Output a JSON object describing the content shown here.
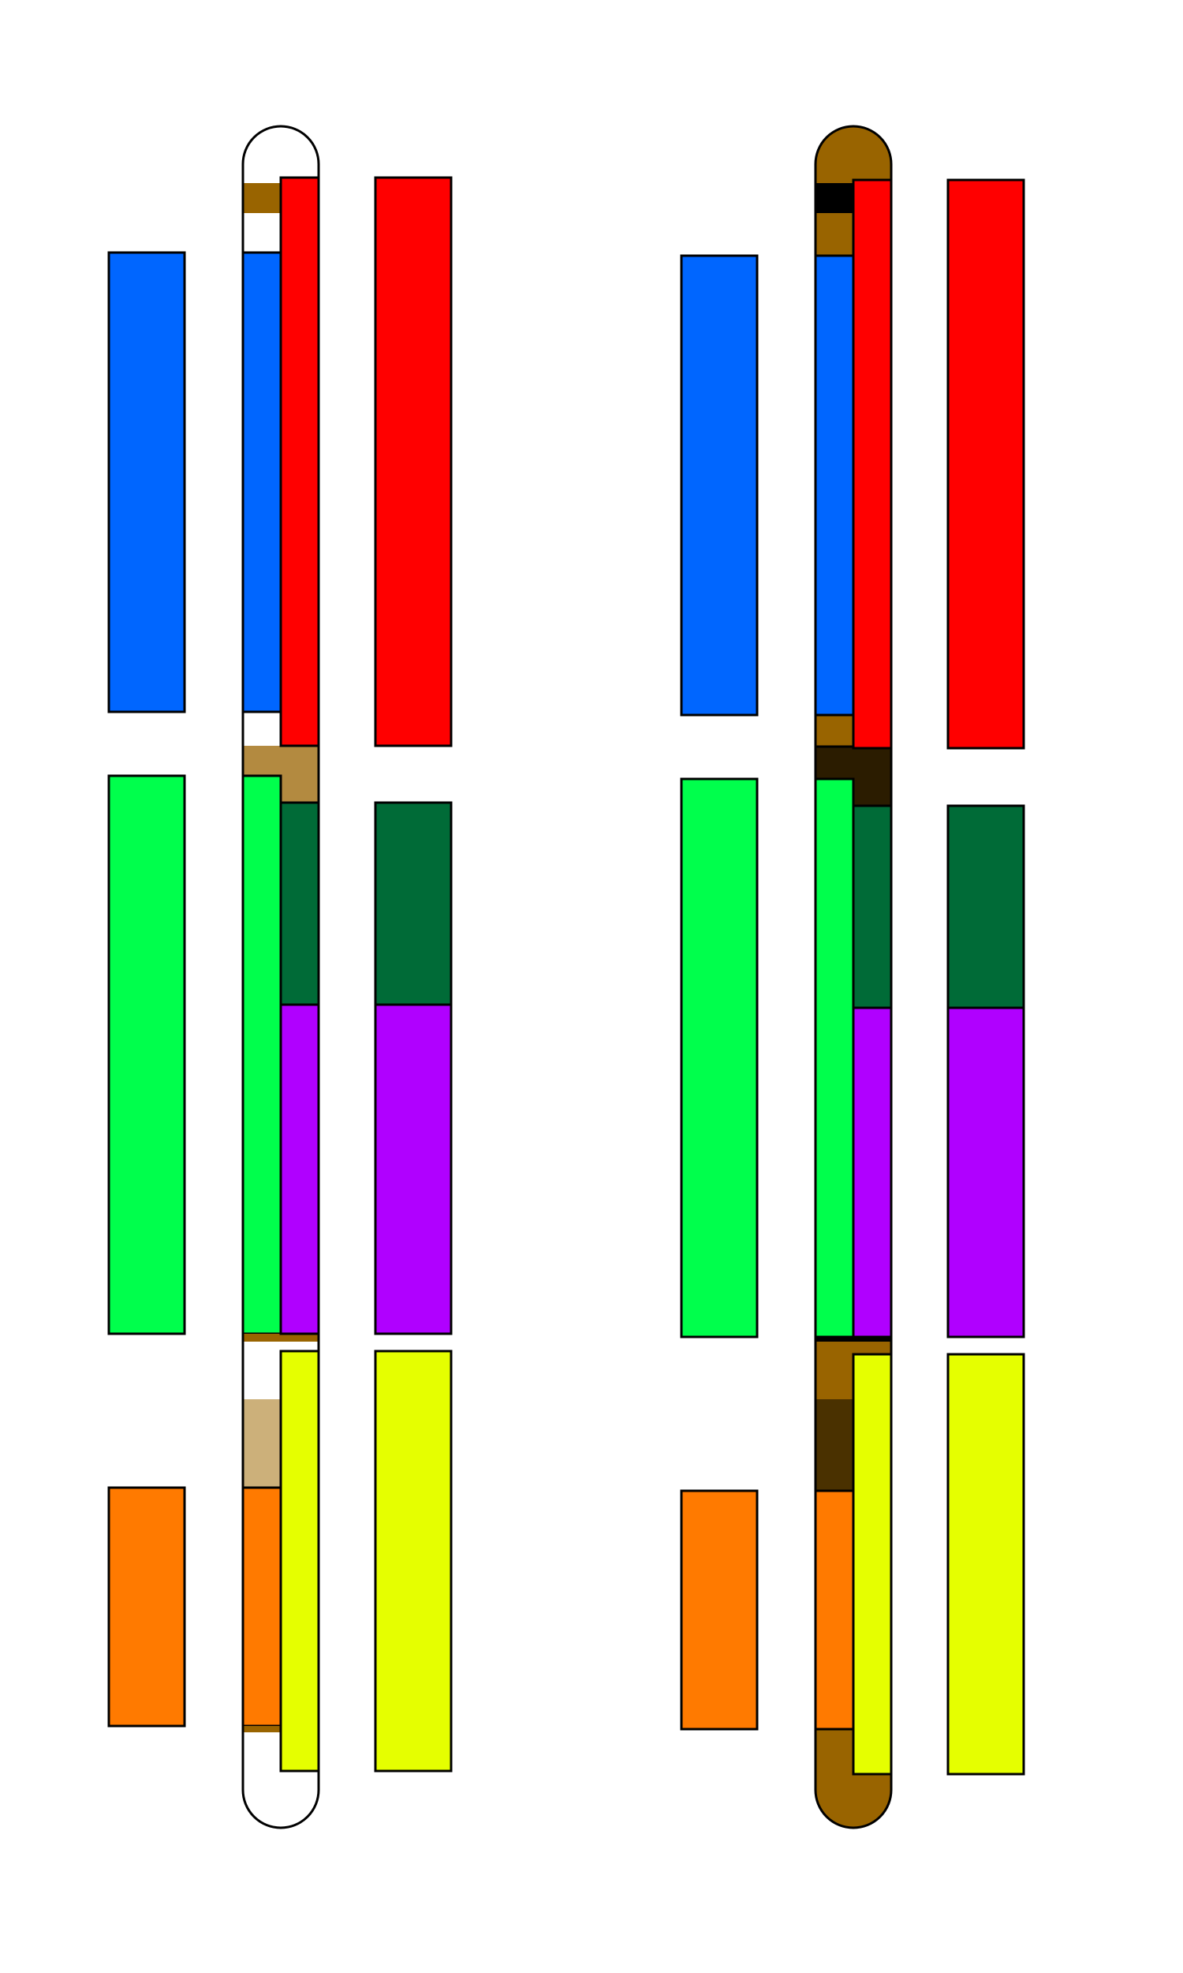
{
  "diagram": {
    "description_note": "",
    "colors": {
      "blue": "#0066ff",
      "red": "#ff0000",
      "green": "#00ff4c",
      "dark_green": "#006b37",
      "purple": "#b000ff",
      "yellow": "#e5ff00",
      "orange": "#ff7a00",
      "brown": "#996400",
      "light_brown": "#b38a40",
      "tan": "#ccb07a",
      "dark_brown": "#4a3100",
      "very_dark_brown": "#2b1c00",
      "black": "#000000",
      "white": "#ffffff"
    }
  }
}
